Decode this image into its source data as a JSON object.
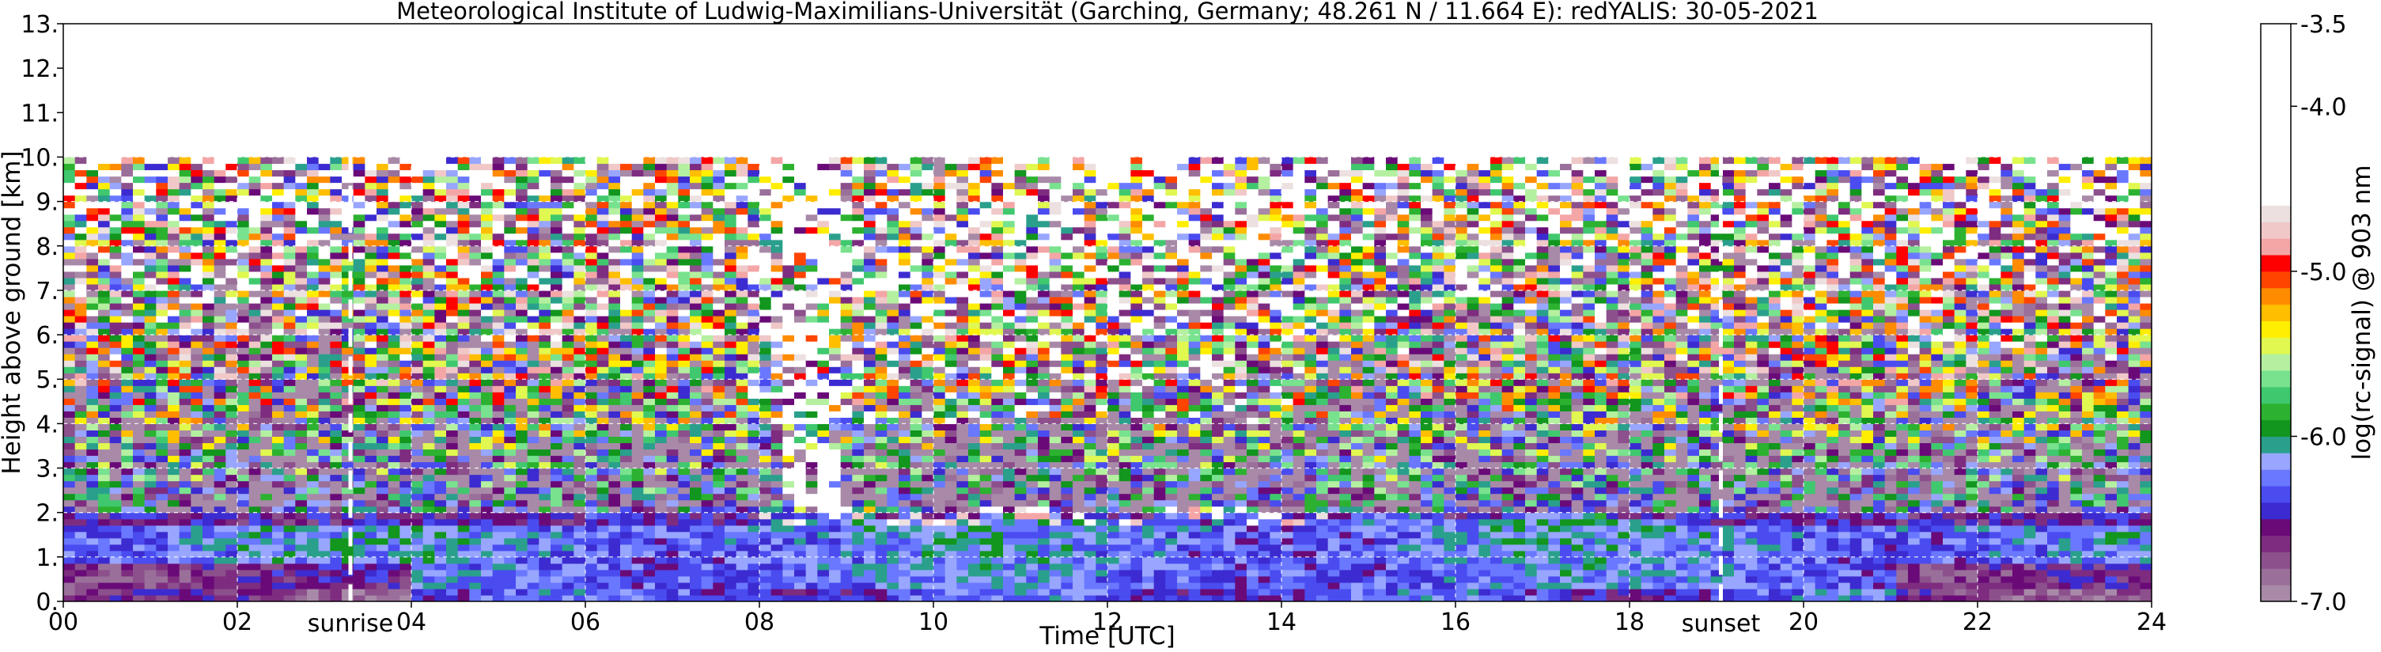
{
  "chart_data": {
    "type": "heatmap",
    "title": "Meteorological Institute of Ludwig-Maximilians-Universität (Garching, Germany; 48.261 N / 11.664 E):    redYALIS: 30-05-2021",
    "xlabel": "Time [UTC]",
    "ylabel": "Height above ground [km]",
    "xlim": [
      0,
      24
    ],
    "ylim": [
      0,
      13
    ],
    "x_ticks": [
      {
        "value": 0,
        "label": "00"
      },
      {
        "value": 2,
        "label": "02"
      },
      {
        "value": 4,
        "label": "04"
      },
      {
        "value": 6,
        "label": "06"
      },
      {
        "value": 8,
        "label": "08"
      },
      {
        "value": 10,
        "label": "10"
      },
      {
        "value": 12,
        "label": "12"
      },
      {
        "value": 14,
        "label": "14"
      },
      {
        "value": 16,
        "label": "16"
      },
      {
        "value": 18,
        "label": "18"
      },
      {
        "value": 20,
        "label": "20"
      },
      {
        "value": 22,
        "label": "22"
      },
      {
        "value": 24,
        "label": "24"
      }
    ],
    "y_ticks": [
      {
        "value": 0,
        "label": "0."
      },
      {
        "value": 1,
        "label": "1."
      },
      {
        "value": 2,
        "label": "2."
      },
      {
        "value": 3,
        "label": "3."
      },
      {
        "value": 4,
        "label": "4."
      },
      {
        "value": 5,
        "label": "5."
      },
      {
        "value": 6,
        "label": "6."
      },
      {
        "value": 7,
        "label": "7."
      },
      {
        "value": 8,
        "label": "8."
      },
      {
        "value": 9,
        "label": "9."
      },
      {
        "value": 10,
        "label": "10."
      },
      {
        "value": 11,
        "label": "11."
      },
      {
        "value": 12,
        "label": "12."
      },
      {
        "value": 13,
        "label": "13."
      }
    ],
    "grid": true,
    "data_top_km": 10,
    "annotations": [
      {
        "x": 3.3,
        "label": "sunrise"
      },
      {
        "x": 19.05,
        "label": "sunset"
      }
    ],
    "colorbar": {
      "label": "log(rc-signal) @ 903 nm",
      "min": -7.0,
      "max": -3.5,
      "ticks": [
        {
          "value": -3.5,
          "label": "-3.5"
        },
        {
          "value": -4.0,
          "label": "-4.0"
        },
        {
          "value": -5.0,
          "label": "-5.0"
        },
        {
          "value": -6.0,
          "label": "-6.0"
        },
        {
          "value": -7.0,
          "label": "-7.0"
        }
      ],
      "bands": [
        {
          "from": -7.0,
          "to": -6.9,
          "color": "#a88aa8"
        },
        {
          "from": -6.9,
          "to": -6.8,
          "color": "#9a6f9a"
        },
        {
          "from": -6.8,
          "to": -6.7,
          "color": "#8c508c"
        },
        {
          "from": -6.7,
          "to": -6.6,
          "color": "#7e2c80"
        },
        {
          "from": -6.6,
          "to": -6.5,
          "color": "#6a0a78"
        },
        {
          "from": -6.5,
          "to": -6.4,
          "color": "#3c2bd0"
        },
        {
          "from": -6.4,
          "to": -6.3,
          "color": "#4a4cf0"
        },
        {
          "from": -6.3,
          "to": -6.2,
          "color": "#6a78ff"
        },
        {
          "from": -6.2,
          "to": -6.1,
          "color": "#98a6ff"
        },
        {
          "from": -6.1,
          "to": -6.0,
          "color": "#2aa08c"
        },
        {
          "from": -6.0,
          "to": -5.9,
          "color": "#12961e"
        },
        {
          "from": -5.9,
          "to": -5.8,
          "color": "#2cb230"
        },
        {
          "from": -5.8,
          "to": -5.7,
          "color": "#40c86e"
        },
        {
          "from": -5.7,
          "to": -5.6,
          "color": "#78e28e"
        },
        {
          "from": -5.6,
          "to": -5.5,
          "color": "#b4f0a0"
        },
        {
          "from": -5.5,
          "to": -5.4,
          "color": "#e0f850"
        },
        {
          "from": -5.4,
          "to": -5.3,
          "color": "#ffee00"
        },
        {
          "from": -5.3,
          "to": -5.2,
          "color": "#ffbe00"
        },
        {
          "from": -5.2,
          "to": -5.1,
          "color": "#ff8c00"
        },
        {
          "from": -5.1,
          "to": -5.0,
          "color": "#ff4400"
        },
        {
          "from": -5.0,
          "to": -4.9,
          "color": "#ff0000"
        },
        {
          "from": -4.9,
          "to": -4.8,
          "color": "#f4a6a6"
        },
        {
          "from": -4.8,
          "to": -4.7,
          "color": "#f0c8c8"
        },
        {
          "from": -4.7,
          "to": -4.6,
          "color": "#ece0e0"
        },
        {
          "from": -4.6,
          "to": -3.5,
          "color": "#ffffff"
        }
      ]
    }
  }
}
